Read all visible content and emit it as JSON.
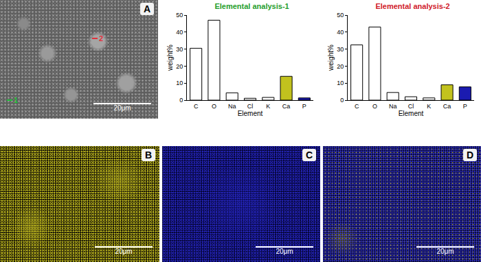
{
  "chart_data": [
    {
      "type": "bar",
      "title": "Elemental analysis-1",
      "categories": [
        "C",
        "O",
        "Na",
        "Cl",
        "K",
        "Ca",
        "P"
      ],
      "values": [
        30.5,
        47,
        4.3,
        1.1,
        1.6,
        14,
        1.3
      ],
      "colors": [
        "#ffffff",
        "#ffffff",
        "#ffffff",
        "#ffffff",
        "#ffffff",
        "#c2c21e",
        "#1b1bb0"
      ],
      "x_label": "Element",
      "y_label": "weight%",
      "ylim": [
        0,
        50
      ],
      "yticks": [
        0,
        10,
        20,
        30,
        40,
        50
      ],
      "grid": false
    },
    {
      "type": "bar",
      "title": "Elemental analysis-2",
      "categories": [
        "C",
        "O",
        "Na",
        "Cl",
        "K",
        "Ca",
        "P"
      ],
      "values": [
        32.5,
        43,
        4.5,
        2,
        1.3,
        9,
        7.8
      ],
      "colors": [
        "#ffffff",
        "#ffffff",
        "#ffffff",
        "#ffffff",
        "#ffffff",
        "#c2c21e",
        "#1b1bb0"
      ],
      "x_label": "Element",
      "y_label": "weight%",
      "ylim": [
        0,
        50
      ],
      "yticks": [
        0,
        10,
        20,
        30,
        40,
        50
      ],
      "grid": false
    }
  ],
  "panels": [
    {
      "label": "A",
      "scale_bar": "20μm",
      "markers": [
        {
          "label": "1",
          "color": "#1fbf3a"
        },
        {
          "label": "2",
          "color": "#e0303a"
        }
      ]
    },
    {
      "label": "B",
      "scale_bar": "20μm"
    },
    {
      "label": "C",
      "scale_bar": "20μm"
    },
    {
      "label": "D",
      "scale_bar": "20μm"
    }
  ]
}
